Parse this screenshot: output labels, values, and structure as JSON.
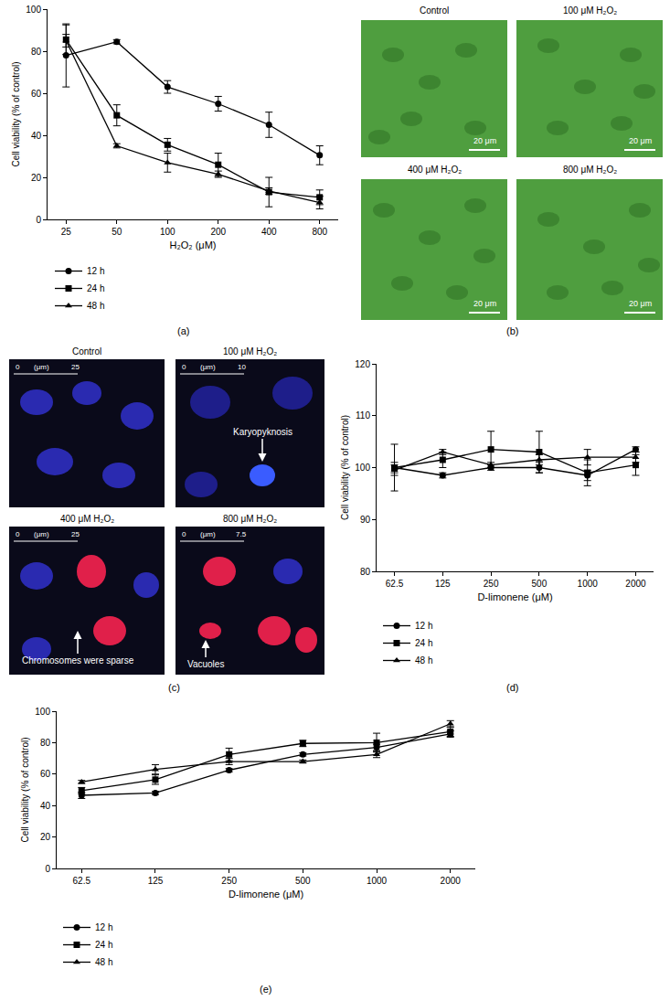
{
  "chart_data": [
    {
      "type": "line",
      "title": "(a)",
      "x_label": "H₂O₂ (μM)",
      "y_label": "Cell viability (% of control)",
      "categories": [
        "25",
        "50",
        "100",
        "200",
        "400",
        "800"
      ],
      "series": [
        {
          "name": "12 h",
          "color": "#000000",
          "marker": "circle",
          "line_style": "solid",
          "values": [
            78,
            84.5,
            63,
            55,
            45,
            30.5
          ],
          "errors": [
            15,
            1,
            3,
            3.5,
            6,
            4.5
          ]
        },
        {
          "name": "24 h",
          "color": "#000000",
          "marker": "square",
          "line_style": "solid",
          "values": [
            85.5,
            49.5,
            35.5,
            26,
            13,
            10.5
          ],
          "errors": [
            7,
            5,
            3,
            5.5,
            7,
            3.5
          ]
        },
        {
          "name": "48 h",
          "color": "#000000",
          "marker": "triangle",
          "line_style": "solid",
          "values": [
            85,
            35,
            27,
            21.5,
            13.5,
            8
          ],
          "errors": [
            3,
            1,
            4.5,
            1.5,
            1.5,
            3
          ]
        }
      ],
      "ylim": [
        0,
        100
      ],
      "yticks": [
        0,
        20,
        40,
        60,
        80,
        100
      ],
      "grid": false,
      "legend": "bottom left"
    },
    {
      "type": "line",
      "title": "(d)",
      "x_label": "D-limonene (μM)",
      "y_label": "Cell viability (% of control)",
      "categories": [
        "62.5",
        "125",
        "250",
        "500",
        "1000",
        "2000"
      ],
      "series": [
        {
          "name": "12 h",
          "color": "#000000",
          "marker": "circle",
          "line_style": "solid",
          "values": [
            100,
            98.5,
            100,
            100,
            98.5,
            103.5
          ],
          "errors": [
            1,
            0.5,
            0.5,
            1,
            1,
            0.5
          ]
        },
        {
          "name": "24 h",
          "color": "#000000",
          "marker": "square",
          "line_style": "solid",
          "values": [
            100,
            101.5,
            103.5,
            103,
            99,
            100.5
          ],
          "errors": [
            4.5,
            1.5,
            3.5,
            4,
            2.5,
            2
          ]
        },
        {
          "name": "48 h",
          "color": "#000000",
          "marker": "triangle",
          "line_style": "solid",
          "values": [
            99.5,
            103,
            100.5,
            101.5,
            102,
            102
          ],
          "errors": [
            1,
            0.5,
            0.5,
            1,
            1.5,
            1
          ]
        }
      ],
      "ylim": [
        80,
        120
      ],
      "yticks": [
        80,
        90,
        100,
        110,
        120
      ],
      "grid": false,
      "legend": "bottom left"
    },
    {
      "type": "line",
      "title": "(e)",
      "x_label": "D-limonene (μM)",
      "y_label": "Cell viability (% of control)",
      "categories": [
        "62.5",
        "125",
        "250",
        "500",
        "1000",
        "2000"
      ],
      "series": [
        {
          "name": "12 h",
          "color": "#000000",
          "marker": "circle",
          "line_style": "solid",
          "values": [
            46.5,
            48,
            62.5,
            72.5,
            77,
            85.5
          ],
          "errors": [
            2,
            1,
            1,
            1,
            2,
            2
          ]
        },
        {
          "name": "24 h",
          "color": "#000000",
          "marker": "square",
          "line_style": "solid",
          "values": [
            49.5,
            56.5,
            72.5,
            79.5,
            80,
            87
          ],
          "errors": [
            2,
            3,
            4,
            2,
            6,
            3
          ]
        },
        {
          "name": "48 h",
          "color": "#000000",
          "marker": "triangle",
          "line_style": "solid",
          "values": [
            55,
            63,
            68,
            68,
            72.5,
            92
          ],
          "errors": [
            1,
            3,
            2,
            1,
            2,
            2
          ]
        }
      ],
      "ylim": [
        0,
        100
      ],
      "yticks": [
        0,
        20,
        40,
        60,
        80,
        100
      ],
      "grid": false,
      "legend": "bottom left"
    }
  ],
  "micrographs": [
    {
      "title": "(b)",
      "images": [
        {
          "title": "Control",
          "scale_bar": "20 μm"
        },
        {
          "title": "100 μM H₂O₂",
          "scale_bar": "20 μm"
        },
        {
          "title": "400 μM H₂O₂",
          "scale_bar": "20 μm"
        },
        {
          "title": "800 μM H₂O₂",
          "scale_bar": "20 μm"
        }
      ]
    },
    {
      "title": "(c)",
      "images": [
        {
          "title": "Control",
          "scale_unit": "(μm)",
          "scale_start": "0",
          "scale_end": "25"
        },
        {
          "title": "100 μM H₂O₂",
          "scale_unit": "(μm)",
          "scale_start": "0",
          "scale_end": "10",
          "annotation": "Karyopyknosis"
        },
        {
          "title": "400 μM H₂O₂",
          "scale_unit": "(μm)",
          "scale_start": "0",
          "scale_end": "25",
          "annotation": "Chromosomes were sparse"
        },
        {
          "title": "800 μM H₂O₂",
          "scale_unit": "(μm)",
          "scale_start": "0",
          "scale_end": "7.5",
          "annotation": "Vacuoles"
        }
      ]
    }
  ]
}
